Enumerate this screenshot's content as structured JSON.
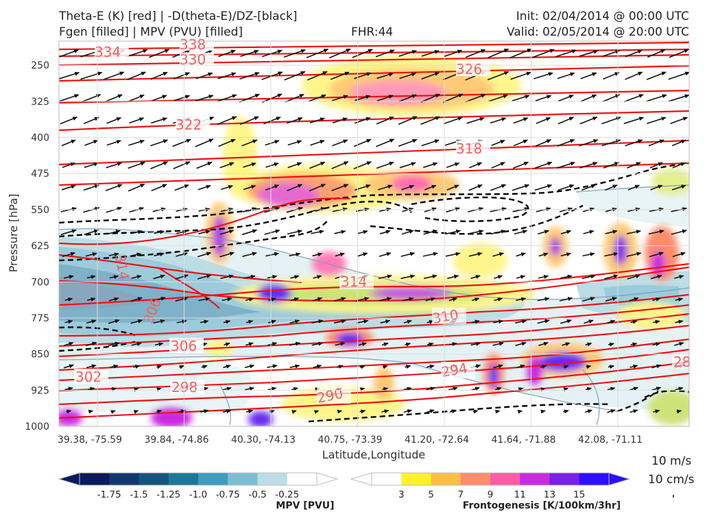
{
  "header": {
    "title_line1": "Theta-E (K) [red] | -D(theta-E)/DZ-[black]",
    "title_line2": "Fgen [filled] | MPV (PVU) [filled]",
    "fhr": "FHR:44",
    "init": "Init: 02/04/2014 @ 00:00 UTC",
    "valid": "Valid: 02/05/2014 @ 20:00 UTC"
  },
  "colors": {
    "theta_e": "#ee1111",
    "stability": "#000000",
    "mpv_ramp": [
      "#0b1a5c",
      "#11386e",
      "#14557e",
      "#1e7799",
      "#3f9dbe",
      "#7fbdd5",
      "#bcdde6",
      "#ffffff"
    ],
    "fgen_ramp": [
      "#ffffff",
      "#fff22a",
      "#ffc040",
      "#ff8c6a",
      "#ff5aa8",
      "#c92ae0",
      "#7a1fea",
      "#2c10ff"
    ]
  },
  "chart_data": {
    "type": "cross-section",
    "xlabel": "Latitude,Longitude",
    "ylabel": "Pressure [hPa]",
    "x_ticks": [
      "39.38, -75.59",
      "39.84, -74.86",
      "40.30, -74.13",
      "40.75, -73.39",
      "41.20, -72.64",
      "41.64, -71.88",
      "42.08, -71.11"
    ],
    "y_ticks": [
      250,
      325,
      400,
      475,
      550,
      625,
      700,
      775,
      850,
      925,
      1000
    ],
    "ylim": [
      1000,
      200
    ],
    "y_reversed": true,
    "grid": true,
    "theta_e_labels": [
      "338",
      "334",
      "330",
      "326",
      "322",
      "318",
      "314",
      "314",
      "310",
      "306",
      "306",
      "302",
      "298",
      "294",
      "290",
      "28"
    ],
    "mpv_colorbar": {
      "label": "MPV [PVU]",
      "ticks": [
        "-1.75",
        "-1.5",
        "-1.25",
        "-1.0",
        "-0.75",
        "-0.5",
        "-0.25"
      ]
    },
    "fgen_colorbar": {
      "label": "Frontogenesis [K/100km/3hr]",
      "ticks": [
        "3",
        "5",
        "7",
        "9",
        "11",
        "13",
        "15"
      ]
    },
    "vector_reference": {
      "horizontal": "10 m/s",
      "vertical": "10 cm/s"
    }
  }
}
